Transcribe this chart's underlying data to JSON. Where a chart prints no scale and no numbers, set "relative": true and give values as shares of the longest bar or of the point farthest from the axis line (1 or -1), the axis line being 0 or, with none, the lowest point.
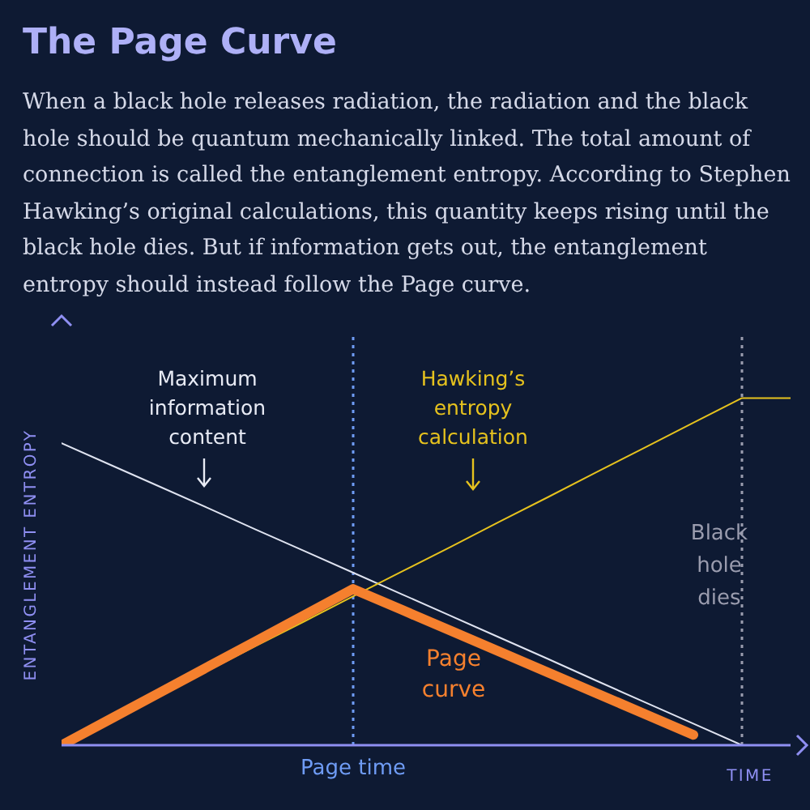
{
  "chart_data": {
    "type": "line",
    "title": "The Page Curve",
    "subtitle": "When a black hole releases radiation, the radiation and the black hole should be quantum mechanically linked. The total amount of connection is called the entanglement entropy. According to Stephen Hawking’s original calculations, this quantity keeps rising until the black hole dies. But if information gets out, the entanglement entropy should instead follow the Page curve.",
    "xlabel": "TIME",
    "ylabel": "ENTANGLEMENT ENTROPY",
    "relative": true,
    "categories": [
      null,
      null,
      null,
      null,
      null,
      null,
      null,
      null,
      null,
      null,
      null,
      null,
      null,
      null,
      null,
      null
    ],
    "series": [
      {
        "name": "Maximum information content",
        "color": "#dfe3f0",
        "values": [
          0.87,
          0.808,
          0.746,
          0.684,
          0.621,
          0.559,
          0.497,
          0.435,
          0.373,
          0.311,
          0.249,
          0.186,
          0.124,
          0.062,
          0,
          null
        ]
      },
      {
        "name": "Hawking’s entropy calculation",
        "color": "#e6c21e",
        "values": [
          0,
          0.071,
          0.143,
          0.214,
          0.286,
          0.357,
          0.429,
          0.5,
          0.571,
          0.643,
          0.714,
          0.786,
          0.857,
          0.929,
          1,
          1
        ]
      },
      {
        "name": "Page curve",
        "color": "#f5802e",
        "values": [
          0,
          0.075,
          0.15,
          0.225,
          0.3,
          0.375,
          0.45,
          0.39,
          0.33,
          0.27,
          0.21,
          0.15,
          0.09,
          0.03,
          null,
          null
        ]
      }
    ],
    "annotations": [
      "Page time",
      "Black\nhole\ndies"
    ],
    "marker": "none",
    "line_style": "solid"
  }
}
